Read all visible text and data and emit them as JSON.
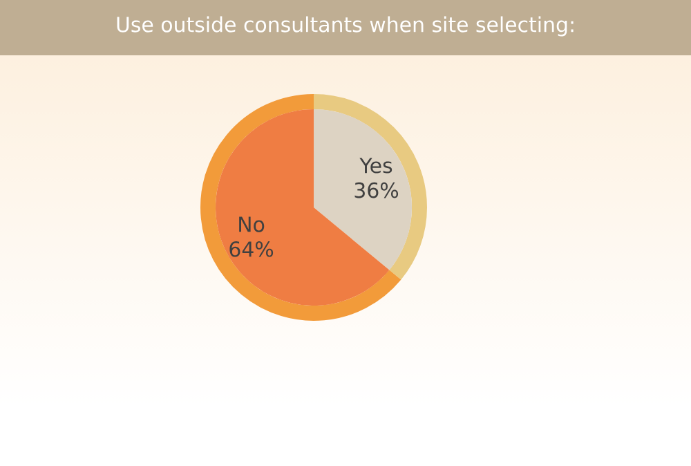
{
  "chart_data": {
    "type": "pie",
    "title": "Use outside consultants when site selecting:",
    "categories": [
      "Yes",
      "No"
    ],
    "values": [
      36,
      64
    ],
    "colors": [
      "#ddd3c3",
      "#ef7d43"
    ],
    "value_labels": [
      "36%",
      "64%"
    ]
  }
}
